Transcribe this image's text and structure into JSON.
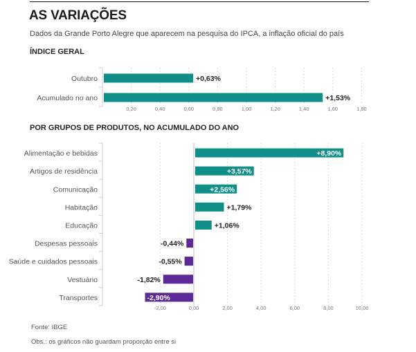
{
  "header": {
    "title": "AS VARIAÇÕES",
    "subtitle": "Dados da Grande Porto Alegre que aparecem na pesquisa do IPCA, a inflação oficial do país"
  },
  "colors": {
    "positive": "#0f8f88",
    "negative": "#5b2a96",
    "label_text": "#555555",
    "value_text": "#222222",
    "grid": "#d0d0d0"
  },
  "footer": {
    "source": "Fonte: IBGE",
    "note": "Obs.: os gráficos não guardam proporção entre si"
  },
  "chart_data": [
    {
      "type": "bar",
      "orientation": "horizontal",
      "title": "ÍNDICE GERAL",
      "categories": [
        "Outubro",
        "Acumulado no ano"
      ],
      "values": [
        0.63,
        1.53
      ],
      "value_labels": [
        "+0,63%",
        "+1,53%"
      ],
      "xlim": [
        0,
        1.8
      ],
      "xticks": [
        0.2,
        0.4,
        0.6,
        0.8,
        1.0,
        1.2,
        1.4,
        1.6,
        1.8
      ],
      "xtick_labels": [
        "0,20",
        "0,40",
        "0,60",
        "0,80",
        "1,00",
        "1,20",
        "1,40",
        "1,60",
        "1,80"
      ],
      "grid": true,
      "xlabel": "",
      "ylabel": ""
    },
    {
      "type": "bar",
      "orientation": "horizontal",
      "title": "POR GRUPOS DE PRODUTOS, NO ACUMULADO DO ANO",
      "categories": [
        "Alimentação e bebidas",
        "Artigos de residência",
        "Comunicação",
        "Habitação",
        "Educação",
        "Despesas pessoais",
        "Saúde e cuidados pessoais",
        "Vestuário",
        "Transportes"
      ],
      "values": [
        8.9,
        3.57,
        2.56,
        1.79,
        1.06,
        -0.44,
        -0.55,
        -1.82,
        -2.9
      ],
      "value_labels": [
        "+8,90%",
        "+3,57%",
        "+2,56%",
        "+1,79%",
        "+1,06%",
        "-0,44%",
        "-0,55%",
        "-1,82%",
        "-2,90%"
      ],
      "xlim": [
        -3.0,
        10.0
      ],
      "xticks": [
        -2,
        0,
        2,
        4,
        6,
        8,
        10
      ],
      "xtick_labels": [
        "-2,00",
        "0,00",
        "2,00",
        "4,00",
        "6,00",
        "8,00",
        "10,00"
      ],
      "grid": true,
      "xlabel": "",
      "ylabel": ""
    }
  ]
}
